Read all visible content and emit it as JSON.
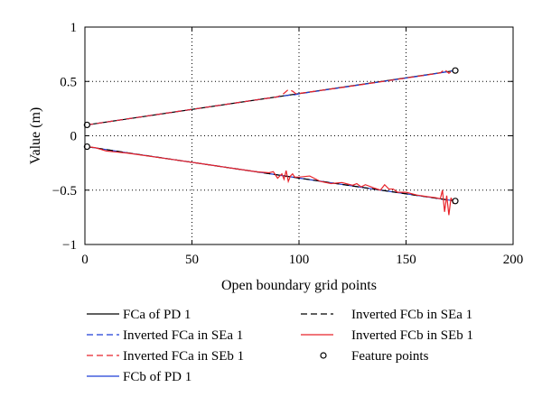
{
  "chart_data": {
    "type": "line",
    "title": "",
    "xlabel": "Open boundary grid points",
    "ylabel": "Value (m)",
    "xlim": [
      0,
      200
    ],
    "ylim": [
      -1,
      1
    ],
    "xticks": [
      0,
      50,
      100,
      150,
      200
    ],
    "yticks": [
      -1,
      -0.5,
      0,
      0.5,
      1
    ],
    "grid": true,
    "legend_position": "bottom",
    "series": [
      {
        "name": "FCa of PD 1",
        "color": "#000000",
        "dash": "solid",
        "x": [
          1,
          173
        ],
        "y": [
          0.1,
          0.6
        ]
      },
      {
        "name": "Inverted FCa in SEa 1",
        "color": "#1f3fd6",
        "dash": "dashed",
        "x": [
          1,
          20,
          40,
          60,
          80,
          90,
          94,
          96,
          98,
          100,
          120,
          140,
          160,
          168,
          170,
          173
        ],
        "y": [
          0.1,
          0.156,
          0.214,
          0.272,
          0.33,
          0.358,
          0.37,
          0.375,
          0.377,
          0.386,
          0.444,
          0.502,
          0.56,
          0.585,
          0.592,
          0.6
        ]
      },
      {
        "name": "Inverted FCa in SEb 1",
        "color": "#e8232a",
        "dash": "dashed",
        "x": [
          1,
          20,
          40,
          60,
          80,
          90,
          93,
          95,
          97,
          99,
          101,
          120,
          140,
          160,
          166,
          168,
          170,
          172,
          173
        ],
        "y": [
          0.1,
          0.156,
          0.214,
          0.272,
          0.33,
          0.358,
          0.39,
          0.425,
          0.41,
          0.38,
          0.392,
          0.444,
          0.502,
          0.56,
          0.578,
          0.61,
          0.575,
          0.6,
          0.6
        ]
      },
      {
        "name": "FCb of PD 1",
        "color": "#1f3fd6",
        "dash": "solid",
        "x": [
          1,
          20,
          40,
          60,
          80,
          90,
          100,
          120,
          140,
          160,
          173
        ],
        "y": [
          -0.1,
          -0.157,
          -0.215,
          -0.273,
          -0.331,
          -0.36,
          -0.389,
          -0.447,
          -0.505,
          -0.563,
          -0.6
        ]
      },
      {
        "name": "Inverted FCb in SEa 1",
        "color": "#000000",
        "dash": "dashed",
        "x": [
          1,
          20,
          40,
          60,
          80,
          90,
          100,
          120,
          140,
          160,
          173
        ],
        "y": [
          -0.1,
          -0.157,
          -0.215,
          -0.273,
          -0.331,
          -0.36,
          -0.389,
          -0.447,
          -0.505,
          -0.563,
          -0.6
        ]
      },
      {
        "name": "Inverted FCb in SEb 1",
        "color": "#e8232a",
        "dash": "solid",
        "x": [
          1,
          5,
          10,
          20,
          40,
          60,
          80,
          86,
          88,
          90,
          92,
          93,
          94,
          95,
          96,
          97,
          98,
          100,
          105,
          110,
          115,
          120,
          125,
          127,
          129,
          131,
          135,
          138,
          140,
          142,
          144,
          146,
          150,
          155,
          160,
          164,
          166,
          167,
          168,
          169,
          170,
          171,
          172,
          173
        ],
        "y": [
          -0.1,
          -0.11,
          -0.14,
          -0.16,
          -0.215,
          -0.273,
          -0.331,
          -0.34,
          -0.33,
          -0.39,
          -0.35,
          -0.4,
          -0.32,
          -0.42,
          -0.37,
          -0.35,
          -0.38,
          -0.38,
          -0.37,
          -0.42,
          -0.44,
          -0.43,
          -0.455,
          -0.44,
          -0.47,
          -0.45,
          -0.48,
          -0.5,
          -0.45,
          -0.49,
          -0.49,
          -0.52,
          -0.52,
          -0.545,
          -0.56,
          -0.57,
          -0.58,
          -0.5,
          -0.7,
          -0.55,
          -0.73,
          -0.57,
          -0.62,
          -0.6
        ]
      },
      {
        "name": "Feature points",
        "color": "#000000",
        "marker": "circle",
        "x": [
          1,
          1,
          173,
          173
        ],
        "y": [
          0.1,
          -0.1,
          0.6,
          -0.6
        ]
      }
    ]
  }
}
